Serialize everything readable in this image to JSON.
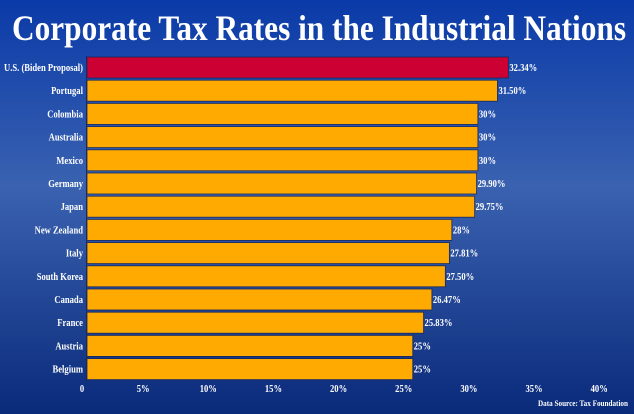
{
  "chart_data": {
    "type": "bar",
    "orientation": "horizontal",
    "title": "Corporate Tax Rates in the Industrial Nations",
    "categories": [
      "U.S. (Biden Proposal)",
      "Portugal",
      "Colombia",
      "Australia",
      "Mexico",
      "Germany",
      "Japan",
      "New Zealand",
      "Italy",
      "South Korea",
      "Canada",
      "France",
      "Austria",
      "Belgium"
    ],
    "values": [
      32.34,
      31.5,
      30,
      30,
      30,
      29.9,
      29.75,
      28,
      27.81,
      27.5,
      26.47,
      25.83,
      25,
      25
    ],
    "data_labels": [
      "32.34%",
      "31.50%",
      "30%",
      "30%",
      "30%",
      "29.90%",
      "29.75%",
      "28%",
      "27.81%",
      "27.50%",
      "26.47%",
      "25.83%",
      "25%",
      "25%"
    ],
    "xticks": [
      0,
      5,
      10,
      15,
      20,
      25,
      30,
      35,
      40
    ],
    "xtick_labels": [
      "0",
      "5%",
      "10%",
      "15%",
      "20%",
      "25%",
      "30%",
      "35%",
      "40%"
    ],
    "xlim": [
      0,
      40
    ],
    "xlabel": "",
    "ylabel": "",
    "grid": false,
    "source": "Data Source: Tax Foundation",
    "colors": {
      "highlight": "#CC0033",
      "bar": "#FFAA00",
      "background_top": "#0a3aa8",
      "background_mid": "#3a62b0",
      "background_bottom": "#0a2a7a",
      "text": "#FFFFFF"
    },
    "highlight_index": 0
  }
}
